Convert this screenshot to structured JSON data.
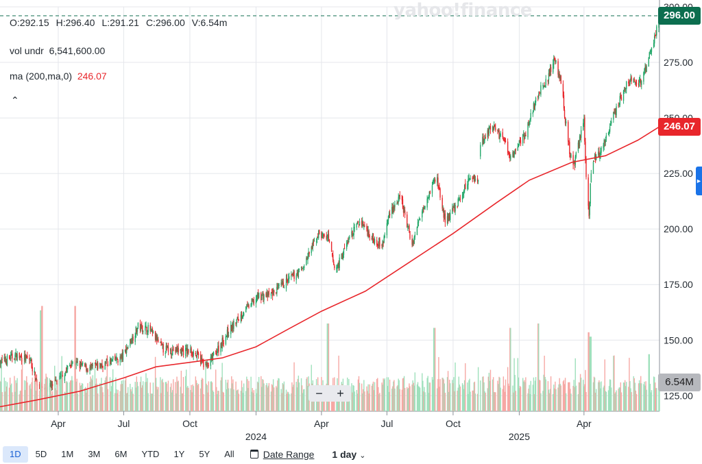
{
  "watermark": "yahoo!finance",
  "legend": {
    "open": "O:292.15",
    "high": "H:296.40",
    "low": "L:291.21",
    "close": "C:296.00",
    "volume": "V:6.54m",
    "vol_label": "vol undr",
    "vol_value": "6,541,600.00",
    "ma_label": "ma (200,ma,0)",
    "ma_value": "246.07"
  },
  "collapse_icon": "chevron-up-icon",
  "badges": {
    "close": "296.00",
    "ma": "246.07",
    "volume": "6.54M"
  },
  "zoom": {
    "minus": "−",
    "plus": "+"
  },
  "toolbar": {
    "ranges": [
      "1D",
      "5D",
      "1M",
      "3M",
      "6M",
      "YTD",
      "1Y",
      "5Y",
      "All"
    ],
    "active_range": "1D",
    "date_range_label": "Date Range",
    "interval_label": "1 day",
    "calendar_icon": "calendar-icon",
    "chevron_icon": "chevron-down-icon"
  },
  "colors": {
    "up": "#26a86b",
    "down": "#e8262b",
    "ma": "#e8262b",
    "vol_up": "#9fe0bc",
    "vol_down": "#f6a8a4",
    "close_line": "#0c6e4f"
  },
  "chart_data": {
    "type": "candlestick",
    "y_axis": {
      "ticks": [
        "300.00",
        "275.00",
        "250.00",
        "225.00",
        "200.00",
        "175.00",
        "150.00",
        "125.00"
      ],
      "ylim": [
        118,
        300
      ]
    },
    "x_axis": {
      "labels": [
        {
          "text": "Apr",
          "date": "2023-04-01"
        },
        {
          "text": "Jul",
          "date": "2023-07-01"
        },
        {
          "text": "Oct",
          "date": "2023-10-01"
        },
        {
          "text": "2024",
          "date": "2024-01-01"
        },
        {
          "text": "Apr",
          "date": "2024-04-01"
        },
        {
          "text": "Jul",
          "date": "2024-07-01"
        },
        {
          "text": "Oct",
          "date": "2024-10-01"
        },
        {
          "text": "2025",
          "date": "2025-01-01"
        },
        {
          "text": "Apr",
          "date": "2025-04-01"
        }
      ],
      "range": [
        "2023-01-10",
        "2025-07-15"
      ]
    },
    "close_path": [
      [
        "2023-01-10",
        140
      ],
      [
        "2023-01-31",
        143
      ],
      [
        "2023-02-21",
        141
      ],
      [
        "2023-03-03",
        130
      ],
      [
        "2023-03-15",
        128
      ],
      [
        "2023-03-31",
        131
      ],
      [
        "2023-04-20",
        140
      ],
      [
        "2023-05-15",
        137
      ],
      [
        "2023-06-10",
        140
      ],
      [
        "2023-06-28",
        142
      ],
      [
        "2023-07-21",
        156
      ],
      [
        "2023-08-05",
        155
      ],
      [
        "2023-08-25",
        146
      ],
      [
        "2023-09-20",
        145
      ],
      [
        "2023-10-05",
        145
      ],
      [
        "2023-10-25",
        138
      ],
      [
        "2023-11-20",
        152
      ],
      [
        "2023-12-15",
        163
      ],
      [
        "2024-01-05",
        170
      ],
      [
        "2024-01-20",
        170
      ],
      [
        "2024-02-15",
        177
      ],
      [
        "2024-03-05",
        182
      ],
      [
        "2024-03-28",
        198
      ],
      [
        "2024-04-10",
        196
      ],
      [
        "2024-04-20",
        181
      ],
      [
        "2024-05-10",
        196
      ],
      [
        "2024-05-25",
        204
      ],
      [
        "2024-06-10",
        196
      ],
      [
        "2024-06-25",
        193
      ],
      [
        "2024-07-05",
        208
      ],
      [
        "2024-07-20",
        214
      ],
      [
        "2024-08-05",
        193
      ],
      [
        "2024-08-20",
        210
      ],
      [
        "2024-09-08",
        224
      ],
      [
        "2024-09-20",
        203
      ],
      [
        "2024-10-10",
        213
      ],
      [
        "2024-10-25",
        224
      ],
      [
        "2024-11-05",
        222
      ],
      [
        "2024-11-08",
        238
      ],
      [
        "2024-11-25",
        247
      ],
      [
        "2024-12-10",
        240
      ],
      [
        "2024-12-20",
        232
      ],
      [
        "2025-01-10",
        243
      ],
      [
        "2025-01-25",
        260
      ],
      [
        "2025-02-10",
        268
      ],
      [
        "2025-02-20",
        277
      ],
      [
        "2025-03-01",
        264
      ],
      [
        "2025-03-10",
        238
      ],
      [
        "2025-03-18",
        228
      ],
      [
        "2025-04-01",
        250
      ],
      [
        "2025-04-04",
        224
      ],
      [
        "2025-04-08",
        207
      ],
      [
        "2025-04-12",
        230
      ],
      [
        "2025-04-25",
        235
      ],
      [
        "2025-05-05",
        245
      ],
      [
        "2025-05-20",
        258
      ],
      [
        "2025-06-01",
        266
      ],
      [
        "2025-06-20",
        266
      ],
      [
        "2025-07-01",
        278
      ],
      [
        "2025-07-15",
        296
      ]
    ],
    "ma_path": [
      [
        "2023-01-10",
        120
      ],
      [
        "2023-03-01",
        123
      ],
      [
        "2023-05-01",
        127
      ],
      [
        "2023-07-01",
        133
      ],
      [
        "2023-08-15",
        138
      ],
      [
        "2023-10-01",
        140
      ],
      [
        "2023-11-15",
        142
      ],
      [
        "2024-01-01",
        147
      ],
      [
        "2024-02-15",
        155
      ],
      [
        "2024-04-01",
        163
      ],
      [
        "2024-06-01",
        172
      ],
      [
        "2024-08-01",
        185
      ],
      [
        "2024-10-01",
        198
      ],
      [
        "2024-12-01",
        212
      ],
      [
        "2025-01-15",
        222
      ],
      [
        "2025-03-15",
        230
      ],
      [
        "2025-05-01",
        233
      ],
      [
        "2025-06-15",
        240
      ],
      [
        "2025-07-15",
        246.07
      ]
    ],
    "gaps": [
      {
        "after": "2024-11-05",
        "before": "2024-11-08"
      }
    ],
    "last_close": 296.0,
    "ma_last": 246.07,
    "volume": {
      "ylim": [
        0,
        25
      ],
      "unit": "M",
      "last": 6.54,
      "spikes": [
        [
          "2023-03-08",
          23
        ],
        [
          "2023-03-10",
          24
        ],
        [
          "2023-04-24",
          24
        ],
        [
          "2024-04-10",
          20
        ],
        [
          "2024-09-05",
          19
        ],
        [
          "2024-12-20",
          19
        ],
        [
          "2025-01-27",
          20
        ],
        [
          "2025-04-07",
          18
        ],
        [
          "2025-04-10",
          17
        ],
        [
          "2025-06-30",
          13
        ]
      ],
      "typical": 7
    }
  }
}
